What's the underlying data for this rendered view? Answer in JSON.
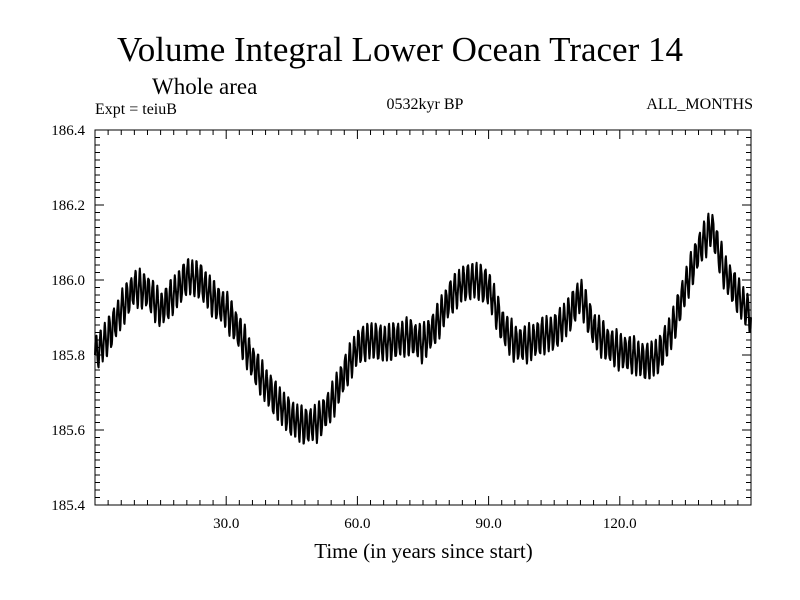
{
  "chart_data": {
    "type": "line",
    "title": "Volume Integral Lower Ocean Tracer 14",
    "subtitle": "Whole area",
    "experiment": "Expt = teiuB",
    "period": "0532kyr BP",
    "months": "ALL_MONTHS",
    "xlabel": "Time (in years since start)",
    "ylabel": "",
    "xlim": [
      0,
      150
    ],
    "ylim": [
      185.4,
      186.4
    ],
    "xticks": [
      {
        "value": 30,
        "label": "30.0"
      },
      {
        "value": 60,
        "label": "60.0"
      },
      {
        "value": 90,
        "label": "90.0"
      },
      {
        "value": 120,
        "label": "120.0"
      }
    ],
    "yticks": [
      {
        "value": 185.4,
        "label": "185.4"
      },
      {
        "value": 185.6,
        "label": "185.6"
      },
      {
        "value": 185.8,
        "label": "185.8"
      },
      {
        "value": 186.0,
        "label": "186.0"
      },
      {
        "value": 186.2,
        "label": "186.2"
      },
      {
        "value": 186.4,
        "label": "186.4"
      }
    ],
    "series": [
      {
        "name": "Volume Integral Lower Ocean Tracer 14",
        "seasonal_amplitude": 0.045,
        "x": [
          0,
          3,
          6,
          9,
          12,
          15,
          18,
          21,
          24,
          27,
          30,
          33,
          36,
          39,
          42,
          45,
          48,
          51,
          54,
          57,
          60,
          63,
          66,
          69,
          72,
          75,
          78,
          81,
          84,
          87,
          90,
          93,
          96,
          99,
          102,
          105,
          108,
          111,
          114,
          117,
          120,
          123,
          126,
          129,
          132,
          135,
          138,
          141,
          144,
          147,
          150
        ],
        "values": [
          185.8,
          185.85,
          185.92,
          185.98,
          185.97,
          185.92,
          185.96,
          186.01,
          186.0,
          185.95,
          185.92,
          185.86,
          185.78,
          185.72,
          185.67,
          185.63,
          185.61,
          185.62,
          185.67,
          185.75,
          185.82,
          185.84,
          185.83,
          185.84,
          185.85,
          185.83,
          185.88,
          185.95,
          185.99,
          186.0,
          185.98,
          185.88,
          185.83,
          185.83,
          185.85,
          185.86,
          185.9,
          185.96,
          185.87,
          185.83,
          185.81,
          185.8,
          185.78,
          185.8,
          185.87,
          185.98,
          186.08,
          186.14,
          186.02,
          185.96,
          185.9
        ]
      }
    ]
  }
}
